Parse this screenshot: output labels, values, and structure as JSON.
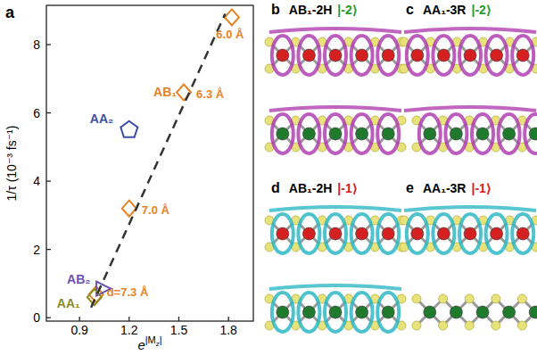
{
  "chart_data": {
    "type": "scatter",
    "title": "a",
    "x_label": [
      "e",
      "|M",
      "z",
      "|"
    ],
    "y_label": "1/τ (10⁻³ fs⁻¹)",
    "xlim": [
      0.7,
      1.95
    ],
    "xticks": [
      0.9,
      1.2,
      1.5,
      1.8
    ],
    "ylim": [
      -0.1,
      9.15
    ],
    "yticks": [
      0,
      2,
      4,
      6,
      8
    ],
    "grid": false,
    "series": [
      {
        "name": "AB₁",
        "type": "scatter",
        "color": "#e8821f",
        "marker": "diamond",
        "x": [
          1.82,
          1.53,
          1.2,
          1.0
        ],
        "values": [
          8.8,
          6.6,
          3.2,
          0.68
        ],
        "point_labels": [
          "6.0 Å",
          "6.3 Å",
          "7.0 Å",
          "d=7.3 Å"
        ]
      },
      {
        "name": "AA₂",
        "type": "scatter",
        "color": "#3b4fa8",
        "marker": "pentagon",
        "x": [
          1.2
        ],
        "values": [
          5.5
        ]
      },
      {
        "name": "AB₂",
        "type": "scatter",
        "color": "#6a50b4",
        "marker": "triangle",
        "x": [
          1.04
        ],
        "values": [
          0.85
        ]
      },
      {
        "name": "AA₁",
        "type": "scatter",
        "color": "#8c8c1e",
        "marker": "diamond",
        "x": [
          0.99
        ],
        "values": [
          0.6
        ]
      },
      {
        "type": "line",
        "color": "#333333",
        "line_style": "dashed",
        "x": [
          0.97,
          1.78
        ],
        "values": [
          0.3,
          8.9
        ]
      }
    ]
  },
  "panels": [
    {
      "letter": "b",
      "title": "AB₁-2H",
      "state": "|-2⟩",
      "state_color": "#2a9a2a",
      "surface_color": "#b040b0"
    },
    {
      "letter": "c",
      "title": "AA₁-3R",
      "state": "|-2⟩",
      "state_color": "#2a9a2a",
      "surface_color": "#b040b0"
    },
    {
      "letter": "d",
      "title": "AB₁-2H",
      "state": "|-1⟩",
      "state_color": "#d42020",
      "surface_color": "#2fb8c4"
    },
    {
      "letter": "e",
      "title": "AA₁-3R",
      "state": "|-1⟩",
      "state_color": "#d42020",
      "surface_color": "#2fb8c4"
    }
  ]
}
